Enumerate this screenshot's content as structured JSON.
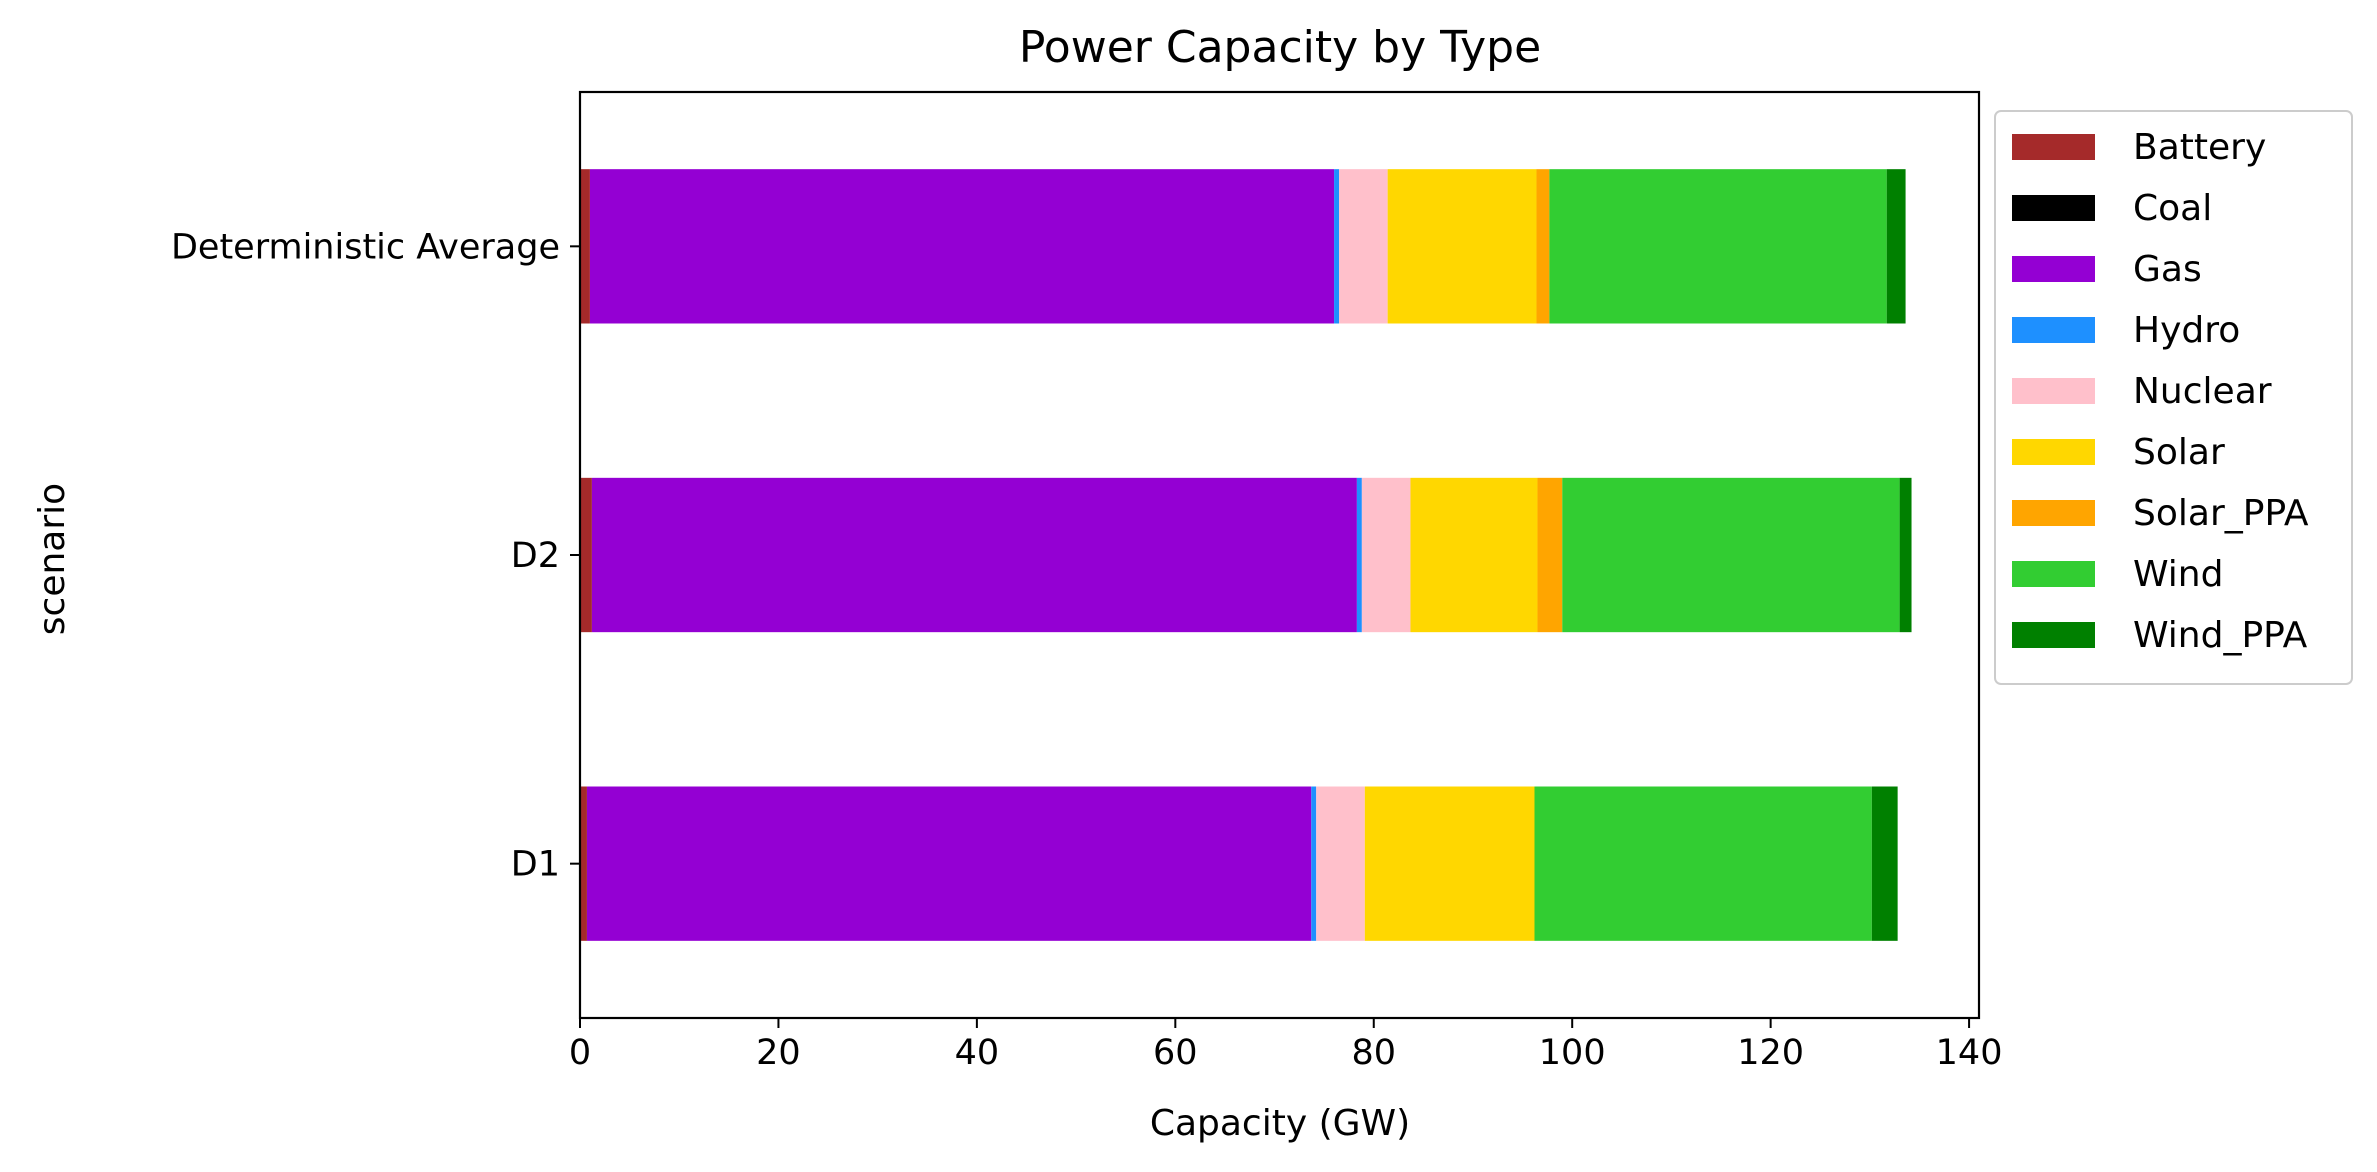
{
  "chart_data": {
    "type": "bar",
    "orientation": "horizontal",
    "stacked": true,
    "title": "Power Capacity by Type",
    "xlabel": "Capacity (GW)",
    "ylabel": "scenario",
    "xlim": [
      0,
      141
    ],
    "xticks": [
      0,
      20,
      40,
      60,
      80,
      100,
      120,
      140
    ],
    "grid": false,
    "legend_position": "outside-right-top",
    "categories": [
      "D1",
      "D2",
      "Deterministic Average"
    ],
    "series": [
      {
        "name": "Battery",
        "color": "#a52a2a",
        "values": [
          0.7,
          1.2,
          1.0
        ]
      },
      {
        "name": "Coal",
        "color": "#000000",
        "values": [
          0.0,
          0.0,
          0.0
        ]
      },
      {
        "name": "Gas",
        "color": "#9400d3",
        "values": [
          73.0,
          77.1,
          75.0
        ]
      },
      {
        "name": "Hydro",
        "color": "#1e90ff",
        "values": [
          0.5,
          0.5,
          0.5
        ]
      },
      {
        "name": "Nuclear",
        "color": "#ffc0cb",
        "values": [
          4.9,
          4.9,
          4.9
        ]
      },
      {
        "name": "Solar",
        "color": "#ffd700",
        "values": [
          17.1,
          12.8,
          15.0
        ]
      },
      {
        "name": "Solar_PPA",
        "color": "#ffa500",
        "values": [
          0.0,
          2.5,
          1.3
        ]
      },
      {
        "name": "Wind",
        "color": "#32cd32",
        "values": [
          34.0,
          34.0,
          34.0
        ]
      },
      {
        "name": "Wind_PPA",
        "color": "#008000",
        "values": [
          2.6,
          1.2,
          1.9
        ]
      }
    ]
  }
}
